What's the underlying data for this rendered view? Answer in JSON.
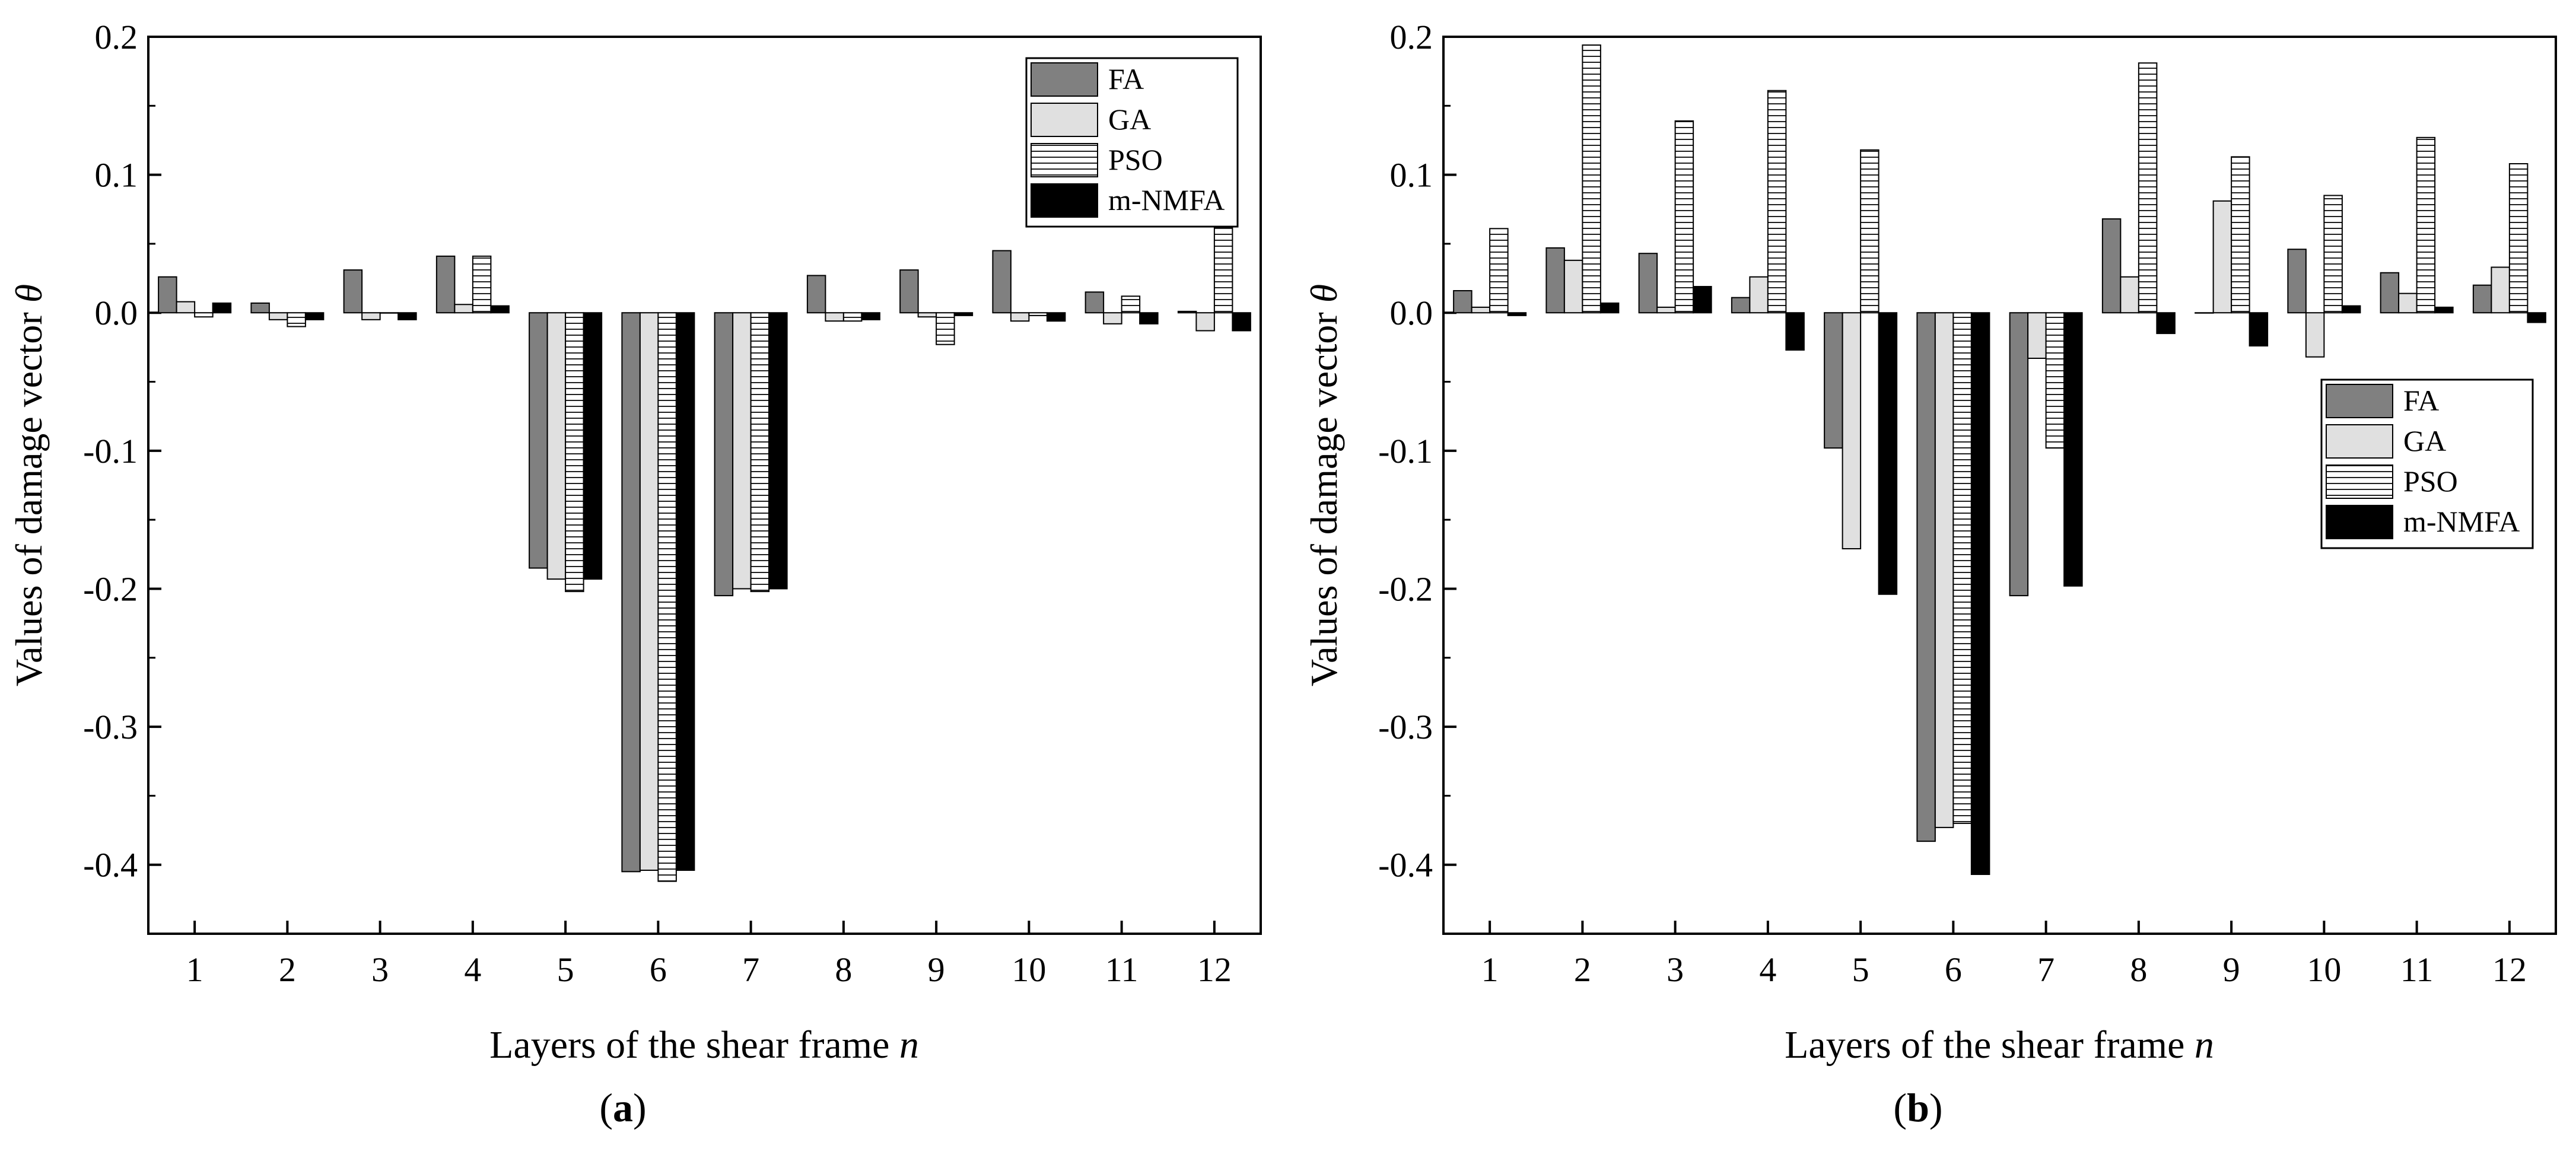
{
  "chart_data": [
    {
      "type": "bar",
      "panel_label": "a",
      "categories": [
        "1",
        "2",
        "3",
        "4",
        "5",
        "6",
        "7",
        "8",
        "9",
        "10",
        "11",
        "12"
      ],
      "xlabel": "Layers of the shear frame",
      "xlabel_var": "n",
      "ylabel": "Values of damage vector",
      "ylabel_var": "θ",
      "ylim": [
        -0.45,
        0.2
      ],
      "yticks": [
        0.2,
        0.1,
        0.0,
        -0.1,
        -0.2,
        -0.3,
        -0.4
      ],
      "ytick_labels": [
        "0.2",
        "0.1",
        "0.0",
        "-0.1",
        "-0.2",
        "-0.3",
        "-0.4"
      ],
      "legend_position": "top-right",
      "series": [
        {
          "name": "FA",
          "values": [
            0.026,
            0.007,
            0.031,
            0.041,
            -0.185,
            -0.405,
            -0.205,
            0.027,
            0.031,
            0.045,
            0.015,
            0.001
          ]
        },
        {
          "name": "GA",
          "values": [
            0.008,
            -0.005,
            -0.005,
            0.006,
            -0.193,
            -0.404,
            -0.2,
            -0.006,
            -0.003,
            -0.006,
            -0.008,
            -0.013
          ]
        },
        {
          "name": "PSO",
          "values": [
            -0.003,
            -0.01,
            0.0,
            0.041,
            -0.202,
            -0.412,
            -0.202,
            -0.006,
            -0.023,
            -0.002,
            0.012,
            0.062
          ]
        },
        {
          "name": "m-NMFA",
          "values": [
            0.007,
            -0.005,
            -0.005,
            0.005,
            -0.193,
            -0.404,
            -0.2,
            -0.005,
            -0.002,
            -0.006,
            -0.008,
            -0.013
          ]
        }
      ]
    },
    {
      "type": "bar",
      "panel_label": "b",
      "categories": [
        "1",
        "2",
        "3",
        "4",
        "5",
        "6",
        "7",
        "8",
        "9",
        "10",
        "11",
        "12"
      ],
      "xlabel": "Layers of the shear frame",
      "xlabel_var": "n",
      "ylabel": "Values of damage vector",
      "ylabel_var": "θ",
      "ylim": [
        -0.45,
        0.2
      ],
      "yticks": [
        0.2,
        0.1,
        0.0,
        -0.1,
        -0.2,
        -0.3,
        -0.4
      ],
      "ytick_labels": [
        "0.2",
        "0.1",
        "0.0",
        "-0.1",
        "-0.2",
        "-0.3",
        "-0.4"
      ],
      "legend_position": "middle-right",
      "series": [
        {
          "name": "FA",
          "values": [
            0.016,
            0.047,
            0.043,
            0.011,
            -0.098,
            -0.383,
            -0.205,
            0.068,
            0.0,
            0.046,
            0.029,
            0.02
          ]
        },
        {
          "name": "GA",
          "values": [
            0.004,
            0.038,
            0.004,
            0.026,
            -0.171,
            -0.373,
            -0.033,
            0.026,
            0.081,
            -0.032,
            0.014,
            0.033
          ]
        },
        {
          "name": "PSO",
          "values": [
            0.061,
            0.194,
            0.139,
            0.161,
            0.118,
            -0.37,
            -0.098,
            0.181,
            0.113,
            0.085,
            0.127,
            0.108
          ]
        },
        {
          "name": "m-NMFA",
          "values": [
            -0.002,
            0.007,
            0.019,
            -0.027,
            -0.204,
            -0.407,
            -0.198,
            -0.015,
            -0.024,
            0.005,
            0.004,
            -0.007
          ]
        }
      ]
    }
  ],
  "series_styles": [
    {
      "fill": "#808080",
      "pattern": "solid"
    },
    {
      "fill": "#e0e0e0",
      "pattern": "solid"
    },
    {
      "fill": "#ffffff",
      "pattern": "horizontal-lines"
    },
    {
      "fill": "#000000",
      "pattern": "solid"
    }
  ]
}
